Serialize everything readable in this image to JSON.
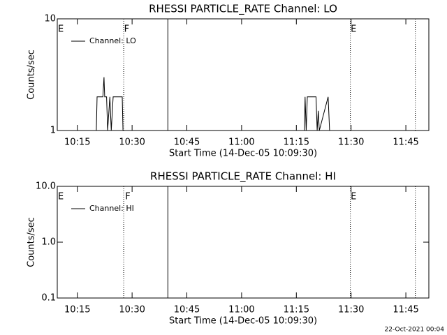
{
  "chart_data": [
    {
      "type": "line",
      "title": "RHESSI PARTICLE_RATE Channel: LO",
      "xlabel": "Start Time (14-Dec-05 10:09:30)",
      "ylabel": "Counts/sec",
      "log_y": true,
      "ylim": [
        1,
        10
      ],
      "yticks": [
        1,
        10
      ],
      "xlim": [
        609.5,
        711.3
      ],
      "xticks": [
        {
          "value": 615,
          "label": "10:15"
        },
        {
          "value": 630,
          "label": "10:30"
        },
        {
          "value": 645,
          "label": "10:45"
        },
        {
          "value": 660,
          "label": "11:00"
        },
        {
          "value": 675,
          "label": "11:15"
        },
        {
          "value": 690,
          "label": "11:30"
        },
        {
          "value": 705,
          "label": "11:45"
        }
      ],
      "legend": "upper left",
      "series": [
        {
          "name": "Channel: LO",
          "color": "#000000",
          "x": [
            620.2,
            620.4,
            622.0,
            622.3,
            622.5,
            623.0,
            623.3,
            623.9,
            624.3,
            624.8,
            627.3,
            627.5,
            677.2,
            677.4,
            677.7,
            678.0,
            680.4,
            680.7,
            681.0,
            681.3,
            683.7,
            684.1
          ],
          "values": [
            1,
            2,
            2,
            3,
            2,
            2,
            1,
            2,
            1,
            2,
            2,
            1,
            1,
            2,
            1,
            2,
            2,
            1,
            1.5,
            1,
            2,
            1
          ]
        }
      ],
      "vlines": [
        {
          "x": 627.7,
          "style": "dotted"
        },
        {
          "x": 639.8,
          "style": "solid"
        },
        {
          "x": 689.8,
          "style": "dotted"
        },
        {
          "x": 707.6,
          "style": "dotted"
        }
      ],
      "annotations": [
        {
          "x": 609.7,
          "text": "E"
        },
        {
          "x": 627.8,
          "text": "F"
        },
        {
          "x": 689.9,
          "text": "E"
        }
      ]
    },
    {
      "type": "line",
      "title": "RHESSI PARTICLE_RATE Channel: HI",
      "xlabel": "Start Time (14-Dec-05 10:09:30)",
      "ylabel": "Counts/sec",
      "log_y": true,
      "ylim": [
        0.1,
        10
      ],
      "yticks": [
        0.1,
        {
          "value": 1,
          "label": "1.0"
        },
        {
          "value": 10,
          "label": "10.0"
        }
      ],
      "xlim": [
        609.5,
        711.3
      ],
      "xticks": [
        {
          "value": 615,
          "label": "10:15"
        },
        {
          "value": 630,
          "label": "10:30"
        },
        {
          "value": 645,
          "label": "10:45"
        },
        {
          "value": 660,
          "label": "11:00"
        },
        {
          "value": 675,
          "label": "11:15"
        },
        {
          "value": 690,
          "label": "11:30"
        },
        {
          "value": 705,
          "label": "11:45"
        }
      ],
      "legend": "upper left",
      "series": [
        {
          "name": "Channel: HI",
          "color": "#000000",
          "x": [],
          "values": []
        }
      ],
      "vlines": [
        {
          "x": 627.7,
          "style": "dotted"
        },
        {
          "x": 639.8,
          "style": "solid"
        },
        {
          "x": 689.8,
          "style": "dotted"
        },
        {
          "x": 707.6,
          "style": "dotted"
        }
      ],
      "annotations": [
        {
          "x": 609.7,
          "text": "E"
        },
        {
          "x": 628.1,
          "text": "F"
        },
        {
          "x": 689.9,
          "text": "E"
        }
      ]
    }
  ],
  "footer": "22-Oct-2021 00:04"
}
